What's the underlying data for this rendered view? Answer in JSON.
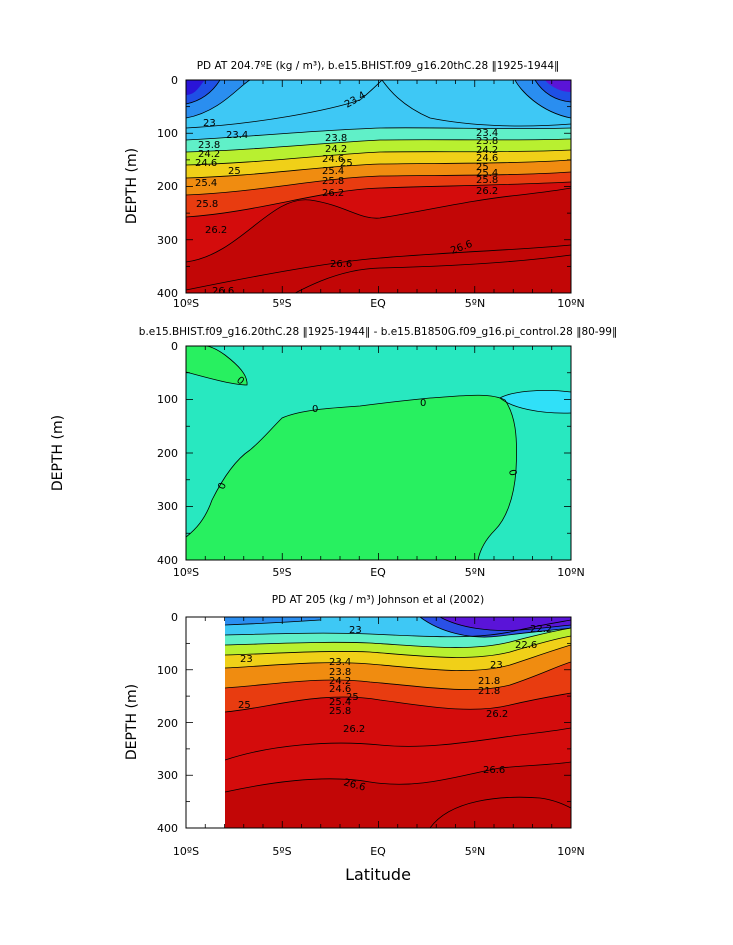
{
  "chart_data": [
    {
      "type": "heatmap",
      "subtype": "filled-contour",
      "title": "PD AT 204.7ºE (kg / m³), b.e15.BHIST.f09_g16.20thC.28 ‖1925-1944‖",
      "ylabel": "DEPTH (m)",
      "xlabel": "",
      "x_ticks": [
        "10ºS",
        "5ºS",
        "EQ",
        "5ºN",
        "10ºN"
      ],
      "y_ticks": [
        "0",
        "100",
        "200",
        "300",
        "400"
      ],
      "xlim": [
        -10,
        10
      ],
      "ylim": [
        400,
        0
      ],
      "contour_levels": [
        {
          "value": 23.4,
          "depth_at_eq": 25
        },
        {
          "value": 23.8,
          "depth_at_eq": 110
        },
        {
          "value": 24.2,
          "depth_at_eq": 125
        },
        {
          "value": 24.6,
          "depth_at_eq": 138
        },
        {
          "value": 25,
          "depth_at_eq": 150
        },
        {
          "value": 25.4,
          "depth_at_eq": 165
        },
        {
          "value": 25.8,
          "depth_at_eq": 180
        },
        {
          "value": 26.2,
          "depth_at_eq": 205
        },
        {
          "value": 26.6,
          "depth_at_eq": 345
        }
      ],
      "contour_labels": [
        "23",
        "23.4",
        "23.8",
        "24.2",
        "24.6",
        "25",
        "25.4",
        "25.8",
        "26.2",
        "26.6"
      ],
      "colors": [
        "#2a14d8",
        "#1e50e6",
        "#2a8ef0",
        "#3ec8f5",
        "#60f0c8",
        "#b8f030",
        "#f0d018",
        "#f08c10",
        "#e83c10",
        "#d40c0c",
        "#c20606"
      ]
    },
    {
      "type": "heatmap",
      "subtype": "filled-contour",
      "title": "b.e15.BHIST.f09_g16.20thC.28 ‖1925-1944‖ - b.e15.B1850G.f09_g16.pi_control.28 ‖80-99‖",
      "ylabel": "DEPTH (m)",
      "xlabel": "",
      "x_ticks": [
        "10ºS",
        "5ºS",
        "EQ",
        "5ºN",
        "10ºN"
      ],
      "y_ticks": [
        "0",
        "100",
        "200",
        "300",
        "400"
      ],
      "xlim": [
        -10,
        10
      ],
      "ylim": [
        400,
        0
      ],
      "contour_labels": [
        "0",
        "0",
        "0",
        "0",
        "0"
      ],
      "colors": [
        "#28e8c0",
        "#28f060",
        "#30e0f8"
      ]
    },
    {
      "type": "heatmap",
      "subtype": "filled-contour",
      "title": "PD AT 205 (kg / m³) Johnson et al (2002)",
      "ylabel": "DEPTH (m)",
      "xlabel": "Latitude",
      "x_ticks": [
        "10ºS",
        "5ºS",
        "EQ",
        "5ºN",
        "10ºN"
      ],
      "y_ticks": [
        "0",
        "100",
        "200",
        "300",
        "400"
      ],
      "xlim": [
        -10,
        10
      ],
      "ylim": [
        400,
        0
      ],
      "data_xlim": [
        -8,
        10
      ],
      "contour_labels": [
        "22.2",
        "22.6",
        "23",
        "23",
        "23",
        "23.4",
        "23.8",
        "24.2",
        "24.6",
        "25",
        "25",
        "25.4",
        "25.8",
        "26.2",
        "26.2",
        "26.6",
        "26.6",
        "21.8",
        "21.8"
      ],
      "colors": [
        "#5a14d8",
        "#2a50e6",
        "#2a8ef0",
        "#3ec8f5",
        "#60f0c8",
        "#b8f030",
        "#f0d018",
        "#f08c10",
        "#e83c10",
        "#d40c0c",
        "#c20606"
      ]
    }
  ]
}
